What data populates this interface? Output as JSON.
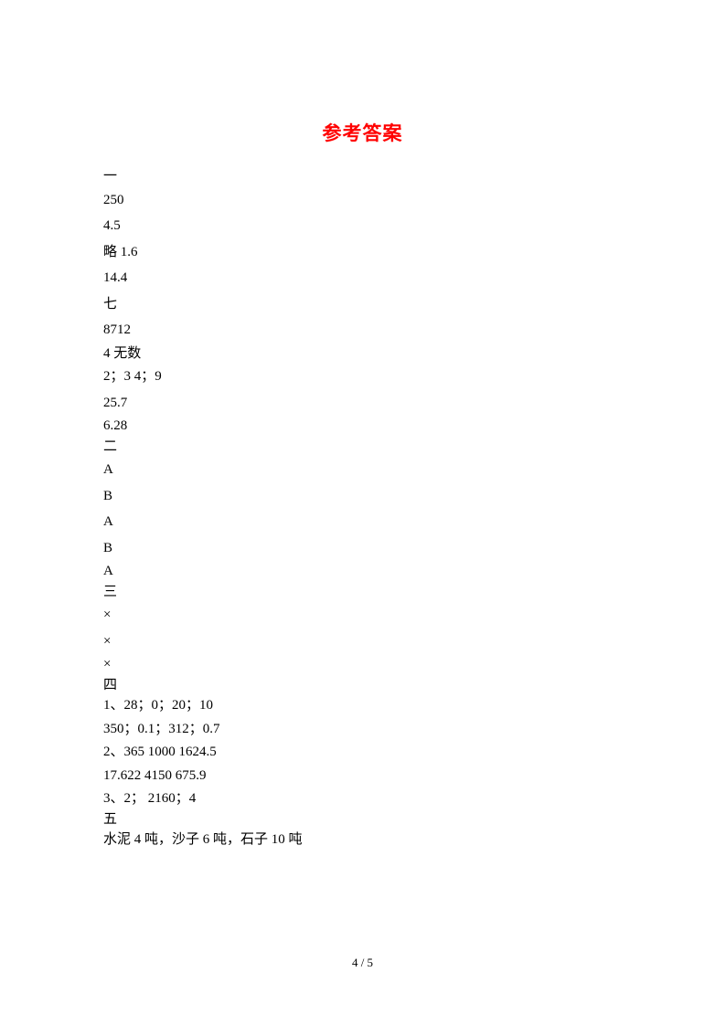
{
  "title": "参考答案",
  "sections": {
    "one": {
      "header": "一",
      "lines": [
        "250",
        "4.5",
        "略    1.6",
        "14.4",
        "七",
        "8712",
        "4     无数",
        "  2；3   4；9",
        "25.7",
        "6.28"
      ]
    },
    "two": {
      "header": "二",
      "lines": [
        "A",
        "B",
        "A",
        "B",
        "A"
      ]
    },
    "three": {
      "header": "三",
      "lines": [
        "×",
        "×",
        "×"
      ]
    },
    "four": {
      "header": "四",
      "lines": [
        "1、28；0；20；10",
        "350；0.1；312；0.7",
        "2、365   1000   1624.5",
        "17.622   4150   675.9",
        "3、2；   2160；4"
      ]
    },
    "five": {
      "header": "五",
      "lines": [
        "水泥 4 吨，沙子 6 吨，石子 10 吨"
      ]
    }
  },
  "pageNumber": "4 / 5",
  "colors": {
    "title": "#ff0000",
    "text": "#000000",
    "background": "#ffffff"
  },
  "typography": {
    "title_fontsize": 21,
    "body_fontsize": 15,
    "pagenum_fontsize": 13,
    "title_font": "SimHei",
    "body_font": "SimSun"
  }
}
